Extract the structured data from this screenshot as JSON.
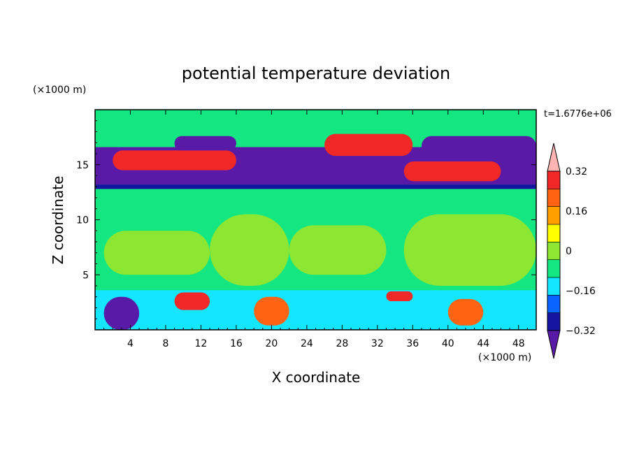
{
  "chart_data": {
    "type": "heatmap",
    "title": "potential temperature deviation",
    "xlabel": "X coordinate",
    "ylabel": "Z coordinate",
    "x_unit_label": "(×1000 m)",
    "y_unit_label": "(×1000 m)",
    "time_label": "t=1.6776e+06",
    "xlim": [
      0,
      50
    ],
    "ylim": [
      0,
      20
    ],
    "x_ticks": [
      4,
      8,
      12,
      16,
      20,
      24,
      28,
      32,
      36,
      40,
      44,
      48
    ],
    "y_ticks": [
      5,
      10,
      15
    ],
    "colorbar": {
      "levels": [
        -0.4,
        -0.32,
        -0.24,
        -0.16,
        -0.08,
        0,
        0.08,
        0.16,
        0.24,
        0.32,
        0.4
      ],
      "labels": [
        "0.32",
        "0.16",
        "0",
        "−0.16",
        "−0.32"
      ],
      "label_values": [
        0.32,
        0.16,
        0,
        -0.16,
        -0.32
      ],
      "colors": [
        "#5a1aa8",
        "#1414a0",
        "#0a64ff",
        "#14e6ff",
        "#14e682",
        "#8ce632",
        "#ffff00",
        "#ffa000",
        "#ff6414",
        "#f02828",
        "#ffb4b4"
      ],
      "extend": "both"
    },
    "field_regions": [
      {
        "x": [
          0,
          50
        ],
        "z": [
          3.6,
          12.8
        ],
        "level": 0
      },
      {
        "x": [
          0,
          50
        ],
        "z": [
          16.8,
          20
        ],
        "level": 0
      },
      {
        "x": [
          1,
          13
        ],
        "z": [
          5,
          9
        ],
        "level": 1
      },
      {
        "x": [
          13,
          22
        ],
        "z": [
          4,
          10.5
        ],
        "level": 1
      },
      {
        "x": [
          22,
          33
        ],
        "z": [
          5,
          9.5
        ],
        "level": 1
      },
      {
        "x": [
          35,
          50
        ],
        "z": [
          4,
          10.5
        ],
        "level": 1
      },
      {
        "x": [
          0,
          50
        ],
        "z": [
          12.8,
          13.2
        ],
        "level": -3
      },
      {
        "x": [
          0,
          50
        ],
        "z": [
          13.2,
          14
        ],
        "level": -5
      },
      {
        "x": [
          0,
          50
        ],
        "z": [
          14,
          16.6
        ],
        "level": -4
      },
      {
        "x": [
          2,
          16
        ],
        "z": [
          14.5,
          16.3
        ],
        "level": 5
      },
      {
        "x": [
          26,
          36
        ],
        "z": [
          15.8,
          17.8
        ],
        "level": 5
      },
      {
        "x": [
          35,
          46
        ],
        "z": [
          13.5,
          15.3
        ],
        "level": 5
      },
      {
        "x": [
          9,
          16
        ],
        "z": [
          16.3,
          17.6
        ],
        "level": -5
      },
      {
        "x": [
          37,
          50
        ],
        "z": [
          15.8,
          17.6
        ],
        "level": -5
      },
      {
        "x": [
          0,
          50
        ],
        "z": [
          0,
          3.6
        ],
        "level": -1
      },
      {
        "x": [
          1,
          5
        ],
        "z": [
          0,
          3
        ],
        "level": -5
      },
      {
        "x": [
          18,
          22
        ],
        "z": [
          0.4,
          3
        ],
        "level": 4
      },
      {
        "x": [
          40,
          44
        ],
        "z": [
          0.4,
          2.8
        ],
        "level": 4
      },
      {
        "x": [
          9,
          13
        ],
        "z": [
          1.8,
          3.4
        ],
        "level": 5
      },
      {
        "x": [
          33,
          36
        ],
        "z": [
          2.6,
          3.5
        ],
        "level": 5
      }
    ]
  }
}
